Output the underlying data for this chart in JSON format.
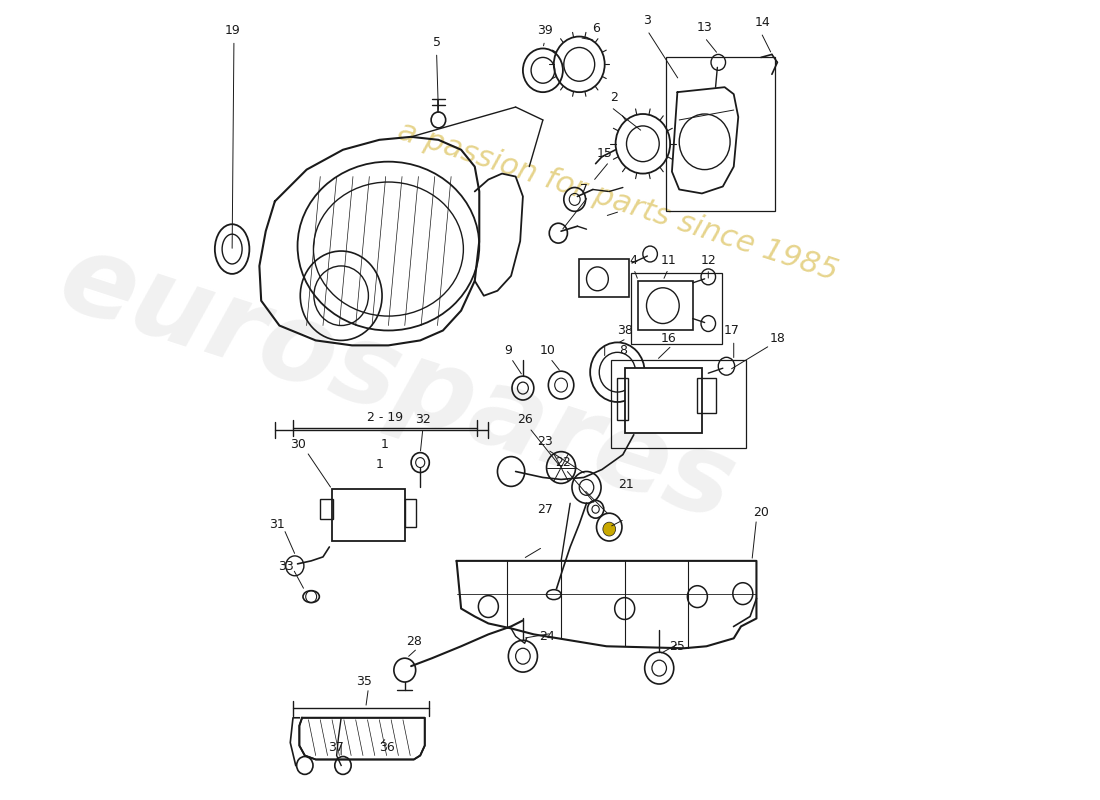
{
  "background_color": "#ffffff",
  "line_color": "#1a1a1a",
  "watermark1": "eurospares",
  "watermark2": "a passion for parts since 1985",
  "fig_width": 11.0,
  "fig_height": 8.0
}
